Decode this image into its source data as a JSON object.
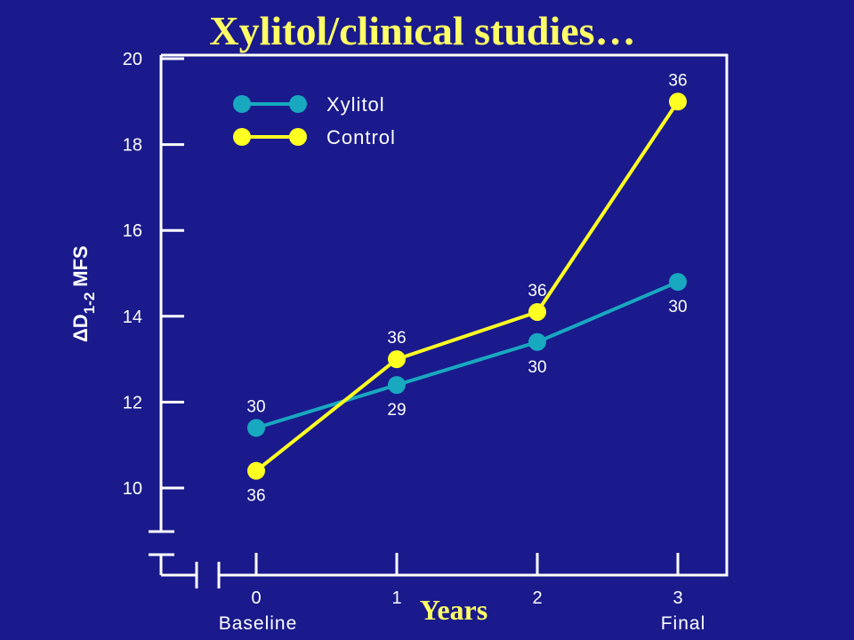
{
  "colors": {
    "background": "#1a1a8c",
    "title": "#ffff66",
    "axis": "#ffffff",
    "xylitol": "#18a8c0",
    "control": "#ffff22"
  },
  "chart_data": {
    "type": "line",
    "title": "Xylitol/clinical studies…",
    "xlabel": "Years",
    "ylabel": "ΔD1-2 MFS",
    "ylabel_parts": {
      "delta": "Δ",
      "main": "D",
      "sub": "1-2",
      "suffix": "MFS"
    },
    "x": [
      0,
      1,
      2,
      3
    ],
    "x_tick_labels": [
      "0",
      "1",
      "2",
      "3"
    ],
    "x_sub_labels": {
      "0": "Baseline",
      "3": "Final"
    },
    "ylim": [
      10,
      20
    ],
    "y_ticks": [
      10,
      12,
      14,
      16,
      18,
      20
    ],
    "legend_position": "top-left",
    "grid": false,
    "series": [
      {
        "name": "Xylitol",
        "color": "#18a8c0",
        "values": [
          11.4,
          12.4,
          13.4,
          14.8
        ],
        "n_labels": [
          "30",
          "29",
          "30",
          "30"
        ],
        "label_side": [
          "above",
          "below",
          "below",
          "below"
        ]
      },
      {
        "name": "Control",
        "color": "#ffff22",
        "values": [
          10.4,
          13.0,
          14.1,
          19.0
        ],
        "n_labels": [
          "36",
          "36",
          "36",
          "36"
        ],
        "label_side": [
          "below",
          "above",
          "above",
          "above"
        ]
      }
    ]
  }
}
